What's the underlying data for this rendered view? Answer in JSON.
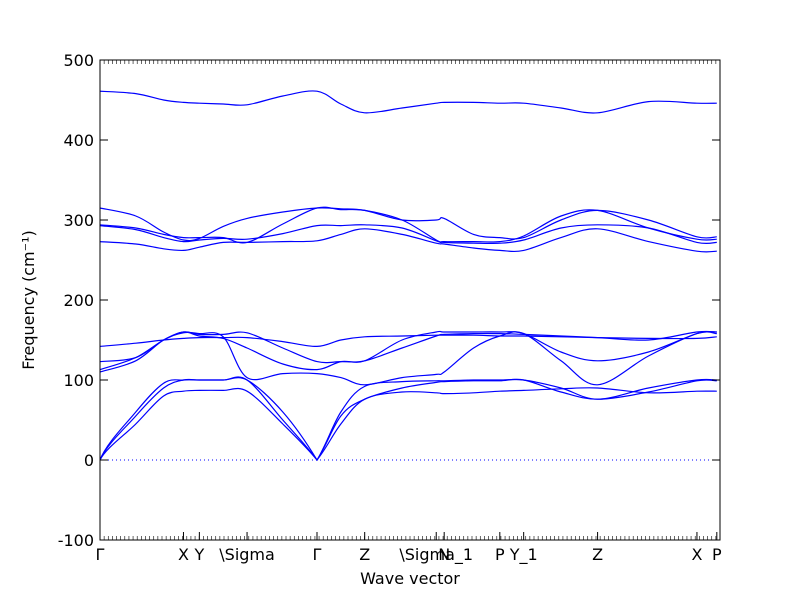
{
  "chart_data": {
    "type": "line",
    "title": "",
    "xlabel": "Wave vector",
    "ylabel": "Frequency (cm⁻¹)",
    "ylim": [
      -100,
      500
    ],
    "yticks": [
      -100,
      0,
      100,
      200,
      300,
      400,
      500
    ],
    "xlim": [
      0,
      7.8
    ],
    "grid": false,
    "legend": "none",
    "line_color": "#0000ff",
    "zero_line_color": "#0000ff",
    "high_symmetry_points": [
      {
        "label": "Γ",
        "x": 0.0
      },
      {
        "label": "X",
        "x": 1.05
      },
      {
        "label": "Y",
        "x": 1.25
      },
      {
        "label": "\\Sigma",
        "x": 1.85
      },
      {
        "label": "Γ",
        "x": 2.73
      },
      {
        "label": "Z",
        "x": 3.33
      },
      {
        "label": "\\Sigma_1",
        "x": 4.23
      },
      {
        "label": "N",
        "x": 4.33
      },
      {
        "label": "P",
        "x": 5.03
      },
      {
        "label": "Y_1",
        "x": 5.33
      },
      {
        "label": "Z",
        "x": 6.26
      },
      {
        "label": "X",
        "x": 7.51
      },
      {
        "label": "P",
        "x": 7.76
      }
    ],
    "x": [
      0,
      0.45,
      0.8,
      1.05,
      1.25,
      1.55,
      1.85,
      2.3,
      2.73,
      3.03,
      3.33,
      3.8,
      4.23,
      4.33,
      4.7,
      5.03,
      5.33,
      5.8,
      6.26,
      6.9,
      7.51,
      7.76
    ],
    "series": [
      {
        "values": [
          461,
          458,
          450,
          447,
          446,
          445,
          444,
          455,
          461,
          445,
          434,
          440,
          446,
          447,
          447,
          446,
          446,
          440,
          434,
          448,
          446,
          446
        ]
      },
      {
        "values": [
          315,
          305,
          285,
          275,
          277,
          292,
          302,
          310,
          315,
          314,
          312,
          300,
          300,
          302,
          282,
          278,
          278,
          300,
          312,
          300,
          279,
          279
        ]
      },
      {
        "values": [
          294,
          290,
          282,
          278,
          278,
          278,
          272,
          295,
          315,
          313,
          312,
          300,
          275,
          273,
          273,
          273,
          280,
          305,
          312,
          290,
          276,
          276
        ]
      },
      {
        "values": [
          293,
          288,
          278,
          273,
          275,
          277,
          276,
          283,
          293,
          293,
          294,
          290,
          274,
          272,
          271,
          271,
          275,
          290,
          294,
          290,
          272,
          272
        ]
      },
      {
        "values": [
          273,
          270,
          264,
          262,
          266,
          272,
          272,
          273,
          274,
          282,
          289,
          282,
          271,
          270,
          265,
          262,
          262,
          278,
          289,
          273,
          261,
          261
        ]
      },
      {
        "values": [
          142,
          146,
          150,
          152,
          153,
          153,
          153,
          148,
          142,
          150,
          154,
          155,
          156,
          156,
          156,
          155,
          155,
          154,
          153,
          152,
          152,
          154
        ]
      },
      {
        "values": [
          123,
          128,
          150,
          160,
          157,
          157,
          159,
          140,
          123,
          123,
          124,
          140,
          155,
          157,
          158,
          158,
          157,
          155,
          153,
          150,
          160,
          160
        ]
      },
      {
        "values": [
          113,
          128,
          150,
          160,
          155,
          152,
          140,
          120,
          113,
          123,
          124,
          150,
          160,
          160,
          160,
          160,
          158,
          135,
          124,
          135,
          158,
          160
        ]
      },
      {
        "values": [
          110,
          124,
          150,
          159,
          158,
          154,
          103,
          108,
          108,
          103,
          94,
          103,
          107,
          110,
          140,
          155,
          158,
          124,
          94,
          130,
          158,
          158
        ]
      },
      {
        "values": [
          0,
          60,
          96,
          100,
          100,
          100,
          100,
          60,
          0,
          60,
          92,
          98,
          99,
          99,
          100,
          100,
          100,
          90,
          76,
          90,
          100,
          100
        ]
      },
      {
        "values": [
          0,
          55,
          90,
          100,
          100,
          100,
          100,
          50,
          0,
          55,
          76,
          90,
          97,
          98,
          99,
          99,
          100,
          85,
          76,
          85,
          99,
          99
        ]
      },
      {
        "values": [
          0,
          45,
          80,
          86,
          87,
          87,
          86,
          45,
          0,
          45,
          76,
          85,
          84,
          83,
          84,
          86,
          87,
          89,
          90,
          84,
          86,
          86
        ]
      }
    ]
  }
}
